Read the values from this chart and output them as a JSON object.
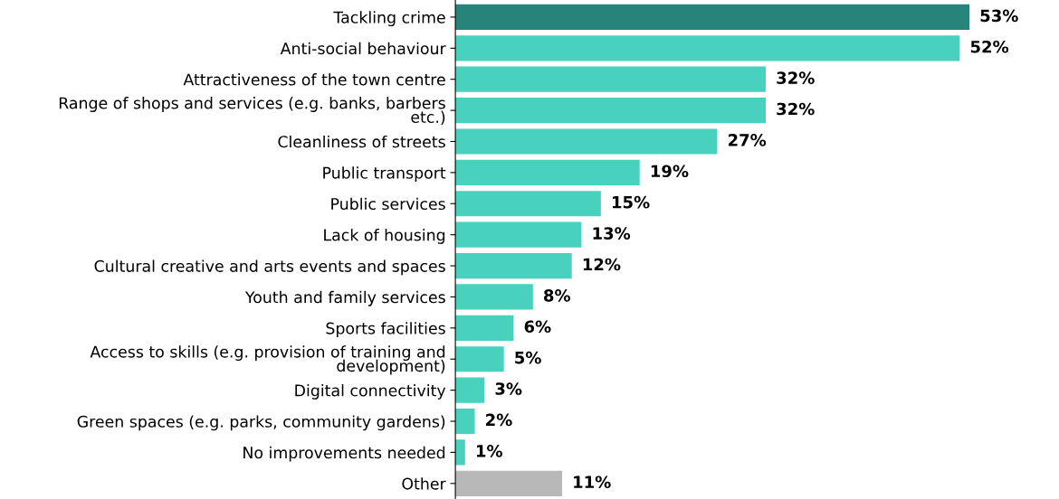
{
  "chart_data": {
    "type": "bar",
    "orientation": "horizontal",
    "tick_labels": "y",
    "grid": false,
    "categories": [
      "Tackling crime",
      "Anti-social behaviour",
      "Attractiveness of the town centre",
      "Range of shops and services (e.g. banks, barbers\netc.)",
      "Cleanliness of streets",
      "Public transport",
      "Public services",
      "Lack of housing",
      "Cultural creative and arts events and spaces",
      "Youth and family services",
      "Sports facilities",
      "Access to skills (e.g. provision of training and\ndevelopment)",
      "Digital connectivity",
      "Green spaces (e.g. parks, community gardens)",
      "No improvements needed",
      "Other"
    ],
    "values": [
      53,
      52,
      32,
      32,
      27,
      19,
      15,
      13,
      12,
      8,
      6,
      5,
      3,
      2,
      1,
      11
    ],
    "value_labels": [
      "53%",
      "52%",
      "32%",
      "32%",
      "27%",
      "19%",
      "15%",
      "13%",
      "12%",
      "8%",
      "6%",
      "5%",
      "3%",
      "2%",
      "1%",
      "11%"
    ],
    "colors": [
      "#26847a",
      "#48d1bc",
      "#48d1bc",
      "#48d1bc",
      "#48d1bc",
      "#48d1bc",
      "#48d1bc",
      "#48d1bc",
      "#48d1bc",
      "#48d1bc",
      "#48d1bc",
      "#48d1bc",
      "#48d1bc",
      "#48d1bc",
      "#48d1bc",
      "#b8b8b8"
    ]
  }
}
